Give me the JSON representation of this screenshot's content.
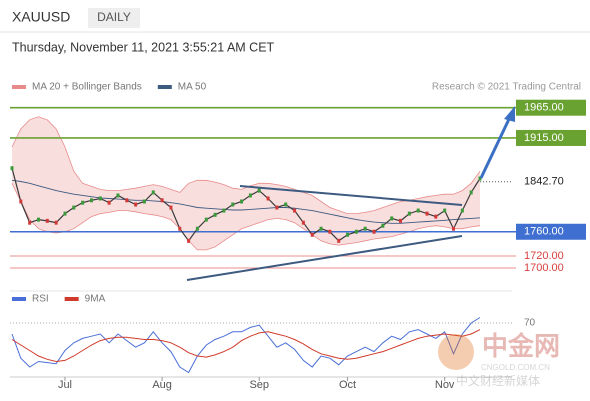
{
  "symbol": "XAUUSD",
  "timeframe": "DAILY",
  "timestamp": "Thursday, November 11, 2021 3:55:21 AM CET",
  "source": "Research © 2021 Trading Central",
  "watermark": {
    "logo": "中金网",
    "site": "CNGOLD.COM.CN",
    "tagline": "中文财经新媒体"
  },
  "chart_data": [
    {
      "type": "line",
      "color": "#3a3a3a",
      "categories": [
        null,
        null,
        null,
        null,
        null,
        null,
        "Jul",
        null,
        null,
        null,
        null,
        null,
        null,
        null,
        null,
        null,
        null,
        "Aug",
        null,
        null,
        null,
        null,
        null,
        null,
        null,
        null,
        null,
        null,
        "Sep",
        null,
        null,
        null,
        null,
        null,
        null,
        null,
        null,
        null,
        "Oct",
        null,
        null,
        null,
        null,
        null,
        null,
        null,
        null,
        null,
        null,
        "Nov",
        null,
        null,
        null,
        null
      ],
      "values": [
        1865,
        1810,
        1775,
        1780,
        1778,
        1775,
        1790,
        1800,
        1808,
        1812,
        1815,
        1808,
        1820,
        1812,
        1805,
        1810,
        1825,
        1812,
        1800,
        1765,
        1745,
        1765,
        1780,
        1788,
        1795,
        1805,
        1810,
        1820,
        1828,
        1815,
        1800,
        1805,
        1795,
        1775,
        1755,
        1765,
        1760,
        1745,
        1755,
        1760,
        1765,
        1760,
        1770,
        1782,
        1778,
        1790,
        1795,
        1790,
        1785,
        1795,
        1765,
        1795,
        1825,
        1848
      ],
      "series": [
        {
          "name": "MA 20 + Bollinger Bands",
          "color": "#e88a8a",
          "upper": [
            1900,
            1930,
            1945,
            1950,
            1945,
            1930,
            1900,
            1860,
            1840,
            1835,
            1830,
            1828,
            1828,
            1830,
            1832,
            1835,
            1838,
            1835,
            1830,
            1825,
            1840,
            1845,
            1845,
            1842,
            1838,
            1832,
            1830,
            1836,
            1840,
            1840,
            1838,
            1835,
            1830,
            1825,
            1820,
            1810,
            1800,
            1795,
            1790,
            1790,
            1792,
            1795,
            1800,
            1805,
            1810,
            1812,
            1815,
            1818,
            1820,
            1822,
            1822,
            1828,
            1840,
            1860
          ],
          "lower": [
            1840,
            1810,
            1780,
            1765,
            1760,
            1758,
            1760,
            1765,
            1775,
            1785,
            1790,
            1792,
            1795,
            1795,
            1793,
            1790,
            1788,
            1785,
            1780,
            1765,
            1745,
            1730,
            1730,
            1735,
            1745,
            1755,
            1765,
            1770,
            1775,
            1780,
            1782,
            1780,
            1775,
            1765,
            1755,
            1745,
            1740,
            1738,
            1740,
            1742,
            1745,
            1748,
            1750,
            1752,
            1756,
            1760,
            1765,
            1768,
            1770,
            1768,
            1765,
            1765,
            1768,
            1770
          ]
        },
        {
          "name": "MA 50",
          "color": "#3d5a80",
          "values": [
            1845,
            1843,
            1840,
            1836,
            1832,
            1828,
            1825,
            1822,
            1820,
            1818,
            1816,
            1815,
            1814,
            1813,
            1812,
            1812,
            1811,
            1810,
            1808,
            1806,
            1803,
            1800,
            1799,
            1798,
            1797,
            1796,
            1796,
            1797,
            1798,
            1799,
            1800,
            1800,
            1799,
            1797,
            1795,
            1792,
            1789,
            1786,
            1783,
            1780,
            1778,
            1776,
            1775,
            1774,
            1774,
            1775,
            1776,
            1777,
            1778,
            1779,
            1780,
            1781,
            1782,
            1783
          ]
        }
      ],
      "levels": [
        {
          "value": 1965,
          "label": "1965.00",
          "color": "#6aa232",
          "style": "box"
        },
        {
          "value": 1915,
          "label": "1915.00",
          "color": "#6aa232",
          "style": "box"
        },
        {
          "value": 1842.7,
          "label": "1842.70",
          "color": "#2f3b4c",
          "style": "dotted"
        },
        {
          "value": 1760,
          "label": "1760.00",
          "color": "#3f6fd1",
          "style": "box"
        },
        {
          "value": 1720,
          "label": "1720.00",
          "color": "#d84040",
          "style": "text"
        },
        {
          "value": 1700,
          "label": "1700.00",
          "color": "#d84040",
          "style": "text"
        }
      ],
      "ylim": [
        1672,
        1986
      ]
    },
    {
      "type": "line",
      "series": [
        {
          "name": "RSI",
          "color": "#4a6fd8",
          "values": [
            60,
            38,
            30,
            35,
            34,
            33,
            45,
            52,
            56,
            58,
            60,
            52,
            60,
            54,
            48,
            52,
            62,
            52,
            44,
            30,
            25,
            40,
            50,
            55,
            58,
            62,
            62,
            66,
            68,
            58,
            48,
            52,
            46,
            36,
            30,
            40,
            38,
            32,
            40,
            44,
            48,
            44,
            52,
            58,
            55,
            62,
            64,
            60,
            56,
            62,
            42,
            60,
            70,
            75
          ]
        },
        {
          "name": "9MA",
          "color": "#d03a2a",
          "values": [
            55,
            50,
            45,
            40,
            37,
            35,
            36,
            40,
            45,
            50,
            54,
            56,
            57,
            57,
            56,
            55,
            55,
            54,
            52,
            48,
            43,
            40,
            39,
            41,
            44,
            48,
            54,
            58,
            61,
            62,
            60,
            58,
            55,
            51,
            46,
            42,
            40,
            38,
            37,
            38,
            40,
            42,
            44,
            47,
            50,
            53,
            56,
            58,
            59,
            60,
            59,
            58,
            60,
            64
          ]
        }
      ],
      "ylim": [
        20,
        80
      ],
      "yticks": [
        70
      ]
    }
  ]
}
